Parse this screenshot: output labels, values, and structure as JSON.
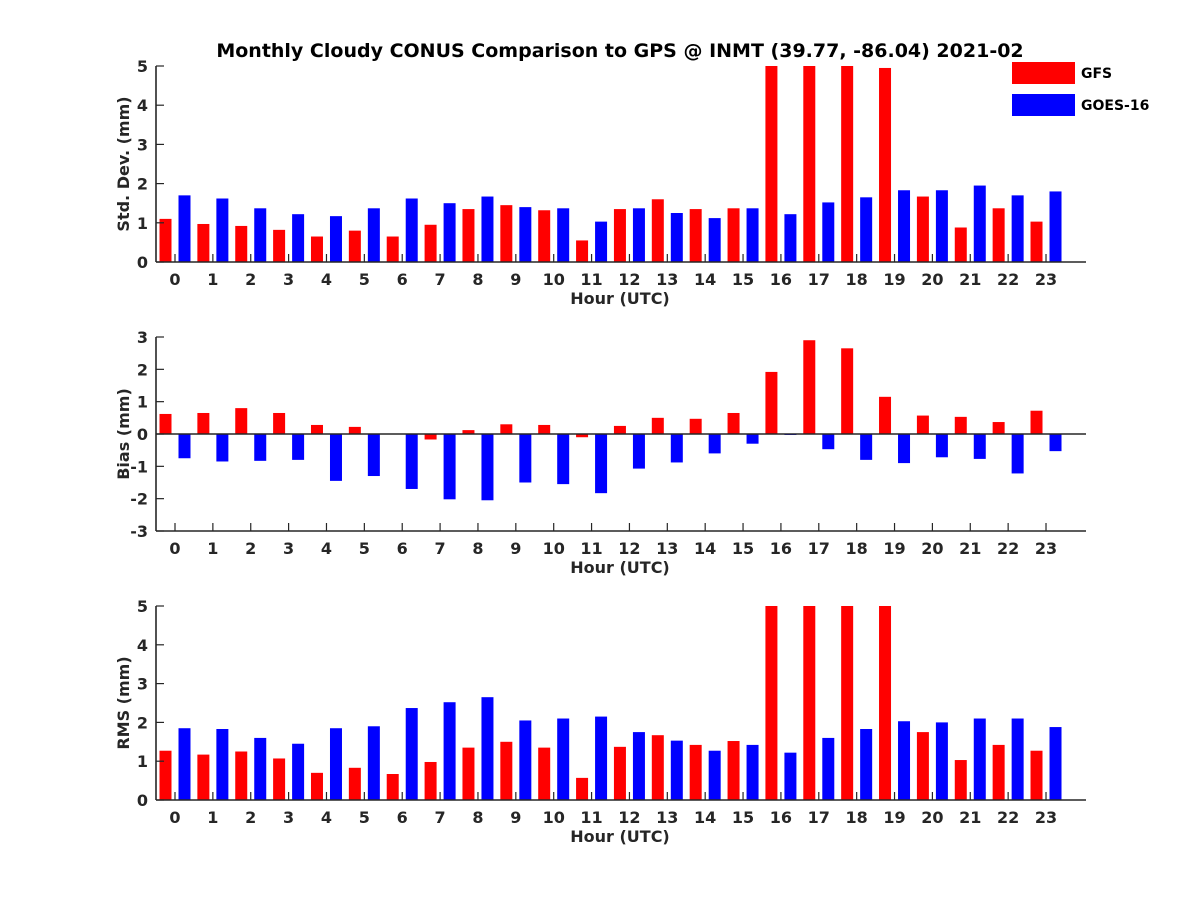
{
  "title": "Monthly Cloudy CONUS Comparison to GPS @ INMT (39.77, -86.04) 2021-02",
  "legend": {
    "placement": "top-right",
    "entries": [
      {
        "name": "GFS",
        "color": "#ff0000"
      },
      {
        "name": "GOES-16",
        "color": "#0000ff"
      }
    ]
  },
  "chart_data": [
    {
      "type": "bar",
      "xlabel": "Hour (UTC)",
      "ylabel": "Std. Dev. (mm)",
      "ylim": [
        0,
        5
      ],
      "yticks": [
        0,
        1,
        2,
        3,
        4,
        5
      ],
      "categories": [
        "0",
        "1",
        "2",
        "3",
        "4",
        "5",
        "6",
        "7",
        "8",
        "9",
        "10",
        "11",
        "12",
        "13",
        "14",
        "15",
        "16",
        "17",
        "18",
        "19",
        "20",
        "21",
        "22",
        "23"
      ],
      "series": [
        {
          "name": "GFS",
          "color": "#ff0000",
          "values": [
            1.1,
            0.97,
            0.92,
            0.82,
            0.65,
            0.8,
            0.65,
            0.95,
            1.35,
            1.45,
            1.32,
            0.55,
            1.35,
            1.6,
            1.35,
            1.37,
            5,
            5,
            5,
            4.95,
            1.67,
            0.88,
            1.37,
            1.03
          ]
        },
        {
          "name": "GOES-16",
          "color": "#0000ff",
          "values": [
            1.7,
            1.62,
            1.37,
            1.22,
            1.17,
            1.37,
            1.62,
            1.5,
            1.67,
            1.4,
            1.37,
            1.03,
            1.37,
            1.25,
            1.12,
            1.37,
            1.22,
            1.52,
            1.65,
            1.83,
            1.83,
            1.95,
            1.7,
            1.8
          ]
        }
      ]
    },
    {
      "type": "bar",
      "xlabel": "Hour (UTC)",
      "ylabel": "Bias (mm)",
      "ylim": [
        -3,
        3
      ],
      "yticks": [
        -3,
        -2,
        -1,
        0,
        1,
        2,
        3
      ],
      "categories": [
        "0",
        "1",
        "2",
        "3",
        "4",
        "5",
        "6",
        "7",
        "8",
        "9",
        "10",
        "11",
        "12",
        "13",
        "14",
        "15",
        "16",
        "17",
        "18",
        "19",
        "20",
        "21",
        "22",
        "23"
      ],
      "series": [
        {
          "name": "GFS",
          "color": "#ff0000",
          "values": [
            0.62,
            0.65,
            0.8,
            0.65,
            0.28,
            0.22,
            0.0,
            -0.17,
            0.12,
            0.3,
            0.28,
            -0.1,
            0.25,
            0.5,
            0.47,
            0.65,
            1.92,
            2.9,
            2.65,
            1.15,
            0.57,
            0.53,
            0.37,
            0.72
          ]
        },
        {
          "name": "GOES-16",
          "color": "#0000ff",
          "values": [
            -0.75,
            -0.85,
            -0.83,
            -0.8,
            -1.45,
            -1.3,
            -1.7,
            -2.02,
            -2.05,
            -1.5,
            -1.55,
            -1.83,
            -1.07,
            -0.88,
            -0.6,
            -0.3,
            -0.03,
            -0.47,
            -0.8,
            -0.9,
            -0.72,
            -0.77,
            -1.22,
            -0.53
          ]
        }
      ]
    },
    {
      "type": "bar",
      "xlabel": "Hour (UTC)",
      "ylabel": "RMS (mm)",
      "ylim": [
        0,
        5
      ],
      "yticks": [
        0,
        1,
        2,
        3,
        4,
        5
      ],
      "categories": [
        "0",
        "1",
        "2",
        "3",
        "4",
        "5",
        "6",
        "7",
        "8",
        "9",
        "10",
        "11",
        "12",
        "13",
        "14",
        "15",
        "16",
        "17",
        "18",
        "19",
        "20",
        "21",
        "22",
        "23"
      ],
      "series": [
        {
          "name": "GFS",
          "color": "#ff0000",
          "values": [
            1.27,
            1.17,
            1.25,
            1.07,
            0.7,
            0.83,
            0.67,
            0.98,
            1.35,
            1.5,
            1.35,
            0.57,
            1.37,
            1.67,
            1.42,
            1.52,
            5,
            5,
            5,
            5,
            1.75,
            1.03,
            1.42,
            1.27
          ]
        },
        {
          "name": "GOES-16",
          "color": "#0000ff",
          "values": [
            1.85,
            1.83,
            1.6,
            1.45,
            1.85,
            1.9,
            2.37,
            2.52,
            2.65,
            2.05,
            2.1,
            2.15,
            1.75,
            1.53,
            1.27,
            1.42,
            1.22,
            1.6,
            1.83,
            2.03,
            2.0,
            2.1,
            2.1,
            1.88
          ]
        }
      ]
    }
  ]
}
